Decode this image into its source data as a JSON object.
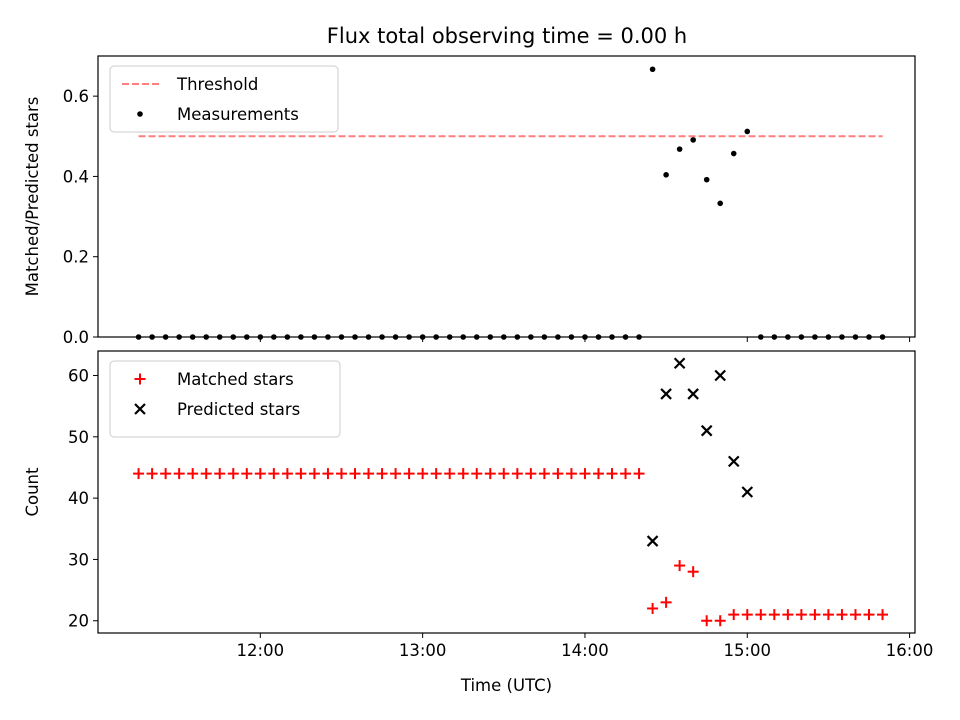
{
  "title": "Flux total observing time = 0.00 h",
  "chart_data": [
    {
      "type": "scatter",
      "ylabel": "Matched/Predicted stars",
      "ylim": [
        0,
        0.7
      ],
      "yticks": [
        0.0,
        0.2,
        0.4,
        0.6
      ],
      "ytick_labels": [
        "0.0",
        "0.2",
        "0.4",
        "0.6"
      ],
      "xlim": [
        "11:00",
        "16:02"
      ],
      "legend": "top-left",
      "threshold": {
        "name": "Threshold",
        "value": 0.5,
        "x_start": "11:15",
        "x_end": "15:50",
        "color": "#ff7f7f",
        "style": "dashed"
      },
      "series": [
        {
          "name": "Measurements",
          "color": "#000000",
          "marker": "dot",
          "points": [
            [
              "11:15",
              0
            ],
            [
              "11:20",
              0
            ],
            [
              "11:25",
              0
            ],
            [
              "11:30",
              0
            ],
            [
              "11:35",
              0
            ],
            [
              "11:40",
              0
            ],
            [
              "11:45",
              0
            ],
            [
              "11:50",
              0
            ],
            [
              "11:55",
              0
            ],
            [
              "12:00",
              0
            ],
            [
              "12:05",
              0
            ],
            [
              "12:10",
              0
            ],
            [
              "12:15",
              0
            ],
            [
              "12:20",
              0
            ],
            [
              "12:25",
              0
            ],
            [
              "12:30",
              0
            ],
            [
              "12:35",
              0
            ],
            [
              "12:40",
              0
            ],
            [
              "12:45",
              0
            ],
            [
              "12:50",
              0
            ],
            [
              "12:55",
              0
            ],
            [
              "13:00",
              0
            ],
            [
              "13:05",
              0
            ],
            [
              "13:10",
              0
            ],
            [
              "13:15",
              0
            ],
            [
              "13:20",
              0
            ],
            [
              "13:25",
              0
            ],
            [
              "13:30",
              0
            ],
            [
              "13:35",
              0
            ],
            [
              "13:40",
              0
            ],
            [
              "13:45",
              0
            ],
            [
              "13:50",
              0
            ],
            [
              "13:55",
              0
            ],
            [
              "14:00",
              0
            ],
            [
              "14:05",
              0
            ],
            [
              "14:10",
              0
            ],
            [
              "14:15",
              0
            ],
            [
              "14:20",
              0
            ],
            [
              "14:25",
              0.667
            ],
            [
              "14:30",
              0.404
            ],
            [
              "14:35",
              0.468
            ],
            [
              "14:40",
              0.491
            ],
            [
              "14:45",
              0.392
            ],
            [
              "14:50",
              0.333
            ],
            [
              "14:55",
              0.457
            ],
            [
              "15:00",
              0.512
            ],
            [
              "15:05",
              0
            ],
            [
              "15:10",
              0
            ],
            [
              "15:15",
              0
            ],
            [
              "15:20",
              0
            ],
            [
              "15:25",
              0
            ],
            [
              "15:30",
              0
            ],
            [
              "15:35",
              0
            ],
            [
              "15:40",
              0
            ],
            [
              "15:45",
              0
            ],
            [
              "15:50",
              0
            ]
          ]
        }
      ]
    },
    {
      "type": "scatter",
      "xlabel": "Time (UTC)",
      "ylabel": "Count",
      "ylim": [
        18,
        64
      ],
      "yticks": [
        20,
        30,
        40,
        50,
        60
      ],
      "ytick_labels": [
        "20",
        "30",
        "40",
        "50",
        "60"
      ],
      "xlim": [
        "11:00",
        "16:02"
      ],
      "xticks": [
        "12:00",
        "13:00",
        "14:00",
        "15:00",
        "16:00"
      ],
      "legend": "top-left",
      "series": [
        {
          "name": "Matched stars",
          "color": "#ff0000",
          "marker": "plus",
          "points": [
            [
              "11:15",
              44
            ],
            [
              "11:20",
              44
            ],
            [
              "11:25",
              44
            ],
            [
              "11:30",
              44
            ],
            [
              "11:35",
              44
            ],
            [
              "11:40",
              44
            ],
            [
              "11:45",
              44
            ],
            [
              "11:50",
              44
            ],
            [
              "11:55",
              44
            ],
            [
              "12:00",
              44
            ],
            [
              "12:05",
              44
            ],
            [
              "12:10",
              44
            ],
            [
              "12:15",
              44
            ],
            [
              "12:20",
              44
            ],
            [
              "12:25",
              44
            ],
            [
              "12:30",
              44
            ],
            [
              "12:35",
              44
            ],
            [
              "12:40",
              44
            ],
            [
              "12:45",
              44
            ],
            [
              "12:50",
              44
            ],
            [
              "12:55",
              44
            ],
            [
              "13:00",
              44
            ],
            [
              "13:05",
              44
            ],
            [
              "13:10",
              44
            ],
            [
              "13:15",
              44
            ],
            [
              "13:20",
              44
            ],
            [
              "13:25",
              44
            ],
            [
              "13:30",
              44
            ],
            [
              "13:35",
              44
            ],
            [
              "13:40",
              44
            ],
            [
              "13:45",
              44
            ],
            [
              "13:50",
              44
            ],
            [
              "13:55",
              44
            ],
            [
              "14:00",
              44
            ],
            [
              "14:05",
              44
            ],
            [
              "14:10",
              44
            ],
            [
              "14:15",
              44
            ],
            [
              "14:20",
              44
            ],
            [
              "14:25",
              22
            ],
            [
              "14:30",
              23
            ],
            [
              "14:35",
              29
            ],
            [
              "14:40",
              28
            ],
            [
              "14:45",
              20
            ],
            [
              "14:50",
              20
            ],
            [
              "14:55",
              21
            ],
            [
              "15:00",
              21
            ],
            [
              "15:05",
              21
            ],
            [
              "15:10",
              21
            ],
            [
              "15:15",
              21
            ],
            [
              "15:20",
              21
            ],
            [
              "15:25",
              21
            ],
            [
              "15:30",
              21
            ],
            [
              "15:35",
              21
            ],
            [
              "15:40",
              21
            ],
            [
              "15:45",
              21
            ],
            [
              "15:50",
              21
            ]
          ]
        },
        {
          "name": "Predicted stars",
          "color": "#000000",
          "marker": "x",
          "points": [
            [
              "14:25",
              33
            ],
            [
              "14:30",
              57
            ],
            [
              "14:35",
              62
            ],
            [
              "14:40",
              57
            ],
            [
              "14:45",
              51
            ],
            [
              "14:50",
              60
            ],
            [
              "14:55",
              46
            ],
            [
              "15:00",
              41
            ]
          ]
        }
      ]
    }
  ]
}
